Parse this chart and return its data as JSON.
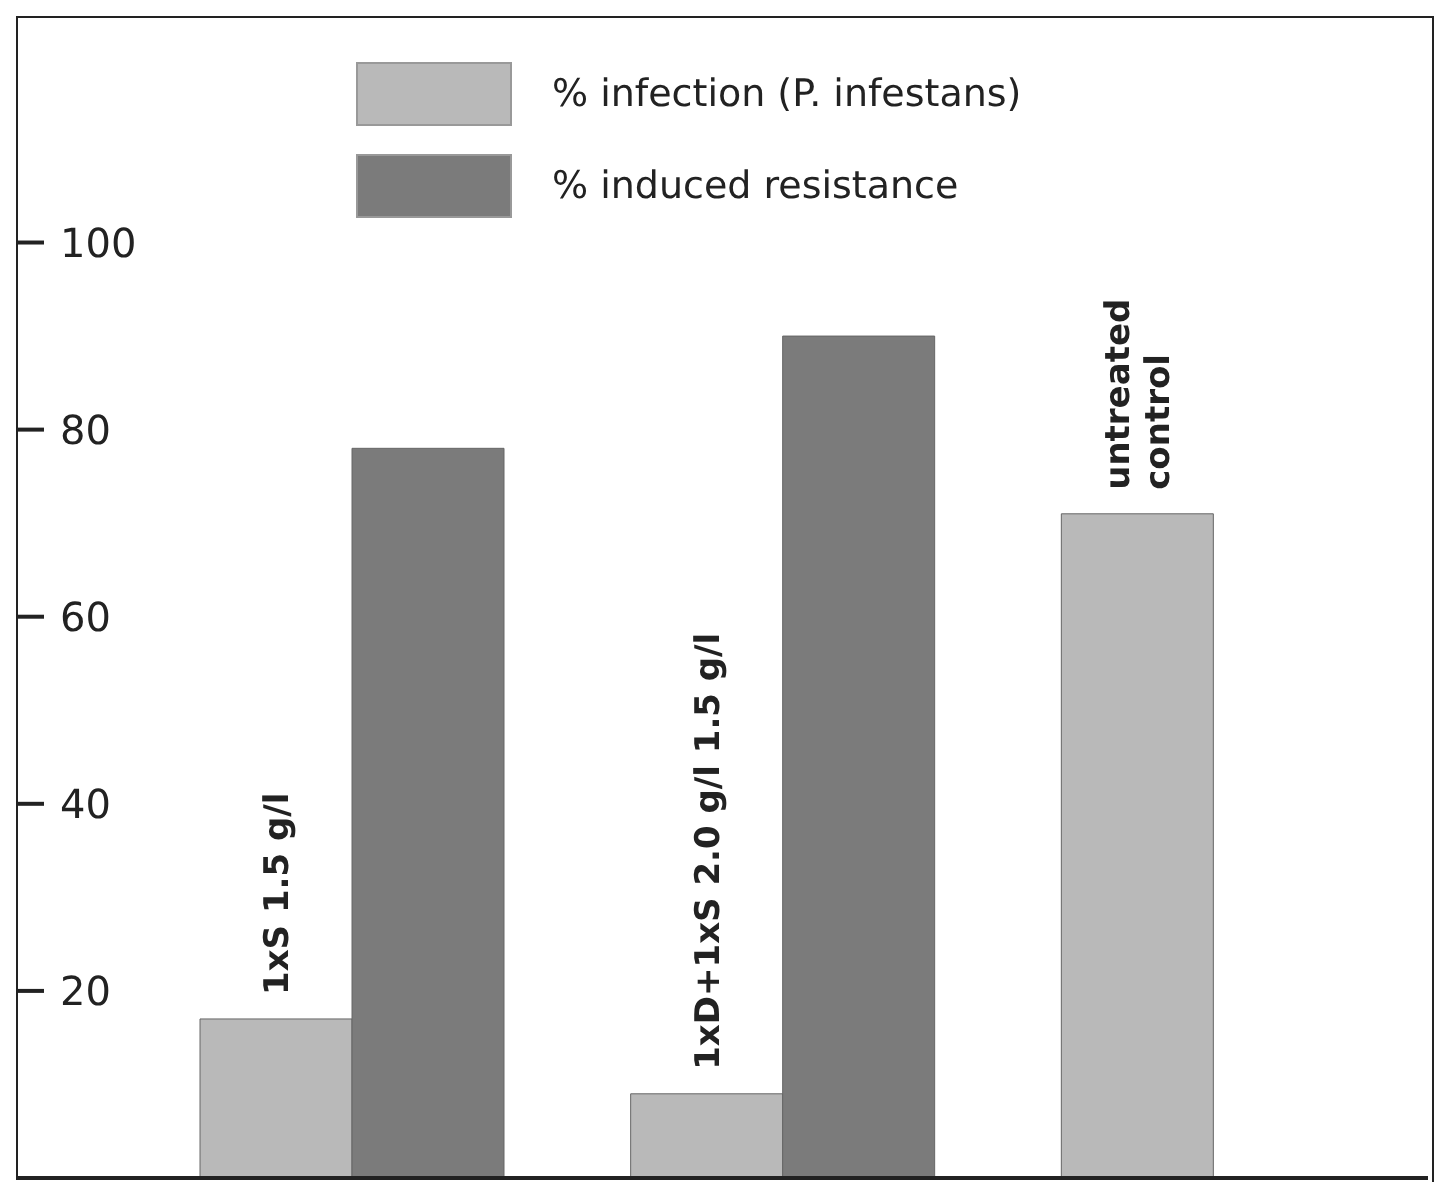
{
  "chart_data": {
    "type": "bar",
    "categories": [
      "1xS 1.5 g/l",
      "1xD+1xS 2.0 g/l 1.5 g/l",
      "untreated control"
    ],
    "series": [
      {
        "name": "% infection (P. infestans)",
        "color": "#b9b9b9",
        "values": [
          17,
          9,
          71
        ]
      },
      {
        "name": "% induced resistance",
        "color": "#7b7b7b",
        "values": [
          78,
          90,
          null
        ]
      }
    ],
    "ylim": [
      0,
      124
    ],
    "yticks": [
      20,
      40,
      60,
      80,
      100
    ],
    "legend": "top",
    "tick_labels": "y"
  }
}
